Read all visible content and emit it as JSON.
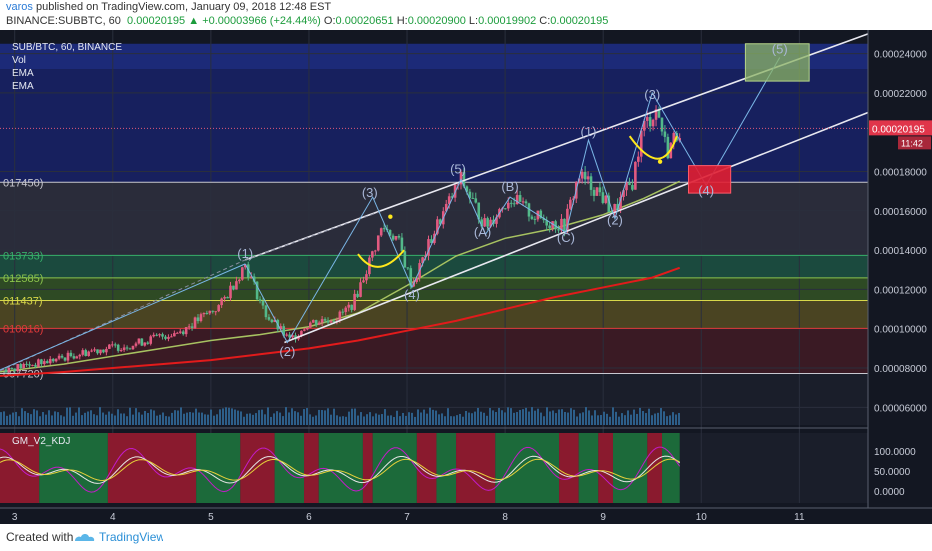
{
  "header": {
    "author": "varos",
    "published": " published on TradingView.com, January 09, 2018 12:48 EST",
    "symbol": "BINANCE:SUBBTC, 60",
    "last": "0.00020195",
    "change_arrow": "▲",
    "change": "+0.00003966 (+24.44%)",
    "o_label": "O:",
    "o": "0.00020651",
    "h_label": "H:",
    "h": "0.00020900",
    "l_label": "L:",
    "l": "0.00019902",
    "c_label": "C:",
    "c": "0.00020195"
  },
  "overlay": {
    "title": "SUB/BTC, 60, BINANCE",
    "vol": "Vol",
    "ema1": "EMA",
    "ema2": "EMA",
    "kdj": "GM_V2_KDJ"
  },
  "footer": {
    "created": "Created with",
    "brand": "TradingView"
  },
  "colors": {
    "bg": "#131722",
    "up": "#e25a80",
    "down": "#53b98a",
    "ema_slow": "#e21b1b",
    "ema_fast": "#a7c261",
    "channel": "#e8e8f0",
    "wave": "#7ab6e6",
    "yellow": "#ffe81c",
    "price_tag": "#e0354a"
  },
  "chart_data": [
    {
      "type": "candlestick",
      "title": "SUB/BTC, 60, BINANCE",
      "x_ticks": [
        "3",
        "4",
        "5",
        "6",
        "7",
        "8",
        "9",
        "10",
        "11"
      ],
      "x_range": [
        2.85,
        11.7
      ],
      "y_ticks": [
        "0.00024000",
        "0.00022000",
        "0.00018000",
        "0.00016000",
        "0.00014000",
        "0.00012000",
        "0.00010000",
        "0.00008000",
        "0.00006000"
      ],
      "y_range": [
        5.1e-05,
        0.000252
      ],
      "last_price": "0.00020195",
      "countdown": "11:42",
      "price_path": [
        [
          2.85,
          7.9e-05
        ],
        [
          3.3,
          8.3e-05
        ],
        [
          3.8,
          8.9e-05
        ],
        [
          4.2,
          9.2e-05
        ],
        [
          4.7,
          9.9e-05
        ],
        [
          5.1,
          0.000112
        ],
        [
          5.35,
          0.000133
        ],
        [
          5.55,
          0.000108
        ],
        [
          5.8,
          9.4e-05
        ],
        [
          6.0,
          0.000103
        ],
        [
          6.3,
          0.000106
        ],
        [
          6.45,
          0.000113
        ],
        [
          6.6,
          0.000132
        ],
        [
          6.75,
          0.000152
        ],
        [
          6.9,
          0.000146
        ],
        [
          7.05,
          0.000122
        ],
        [
          7.3,
          0.000152
        ],
        [
          7.55,
          0.000176
        ],
        [
          7.8,
          0.000152
        ],
        [
          8.05,
          0.000167
        ],
        [
          8.3,
          0.000157
        ],
        [
          8.6,
          0.000152
        ],
        [
          8.75,
          0.000178
        ],
        [
          8.95,
          0.00017
        ],
        [
          9.1,
          0.000159
        ],
        [
          9.3,
          0.000175
        ],
        [
          9.4,
          0.000202
        ],
        [
          9.55,
          0.000212
        ],
        [
          9.65,
          0.00019
        ],
        [
          9.78,
          0.000202
        ]
      ],
      "ema_fast": [
        [
          2.85,
          7.8e-05
        ],
        [
          3.5,
          8.2e-05
        ],
        [
          4.5,
          9e-05
        ],
        [
          5.0,
          9.4e-05
        ],
        [
          5.5,
          9.7e-05
        ],
        [
          6.0,
          0.000101
        ],
        [
          6.5,
          0.000108
        ],
        [
          7.0,
          0.000122
        ],
        [
          7.5,
          0.000137
        ],
        [
          8.0,
          0.000146
        ],
        [
          8.5,
          0.000151
        ],
        [
          9.0,
          0.000158
        ],
        [
          9.4,
          0.000166
        ],
        [
          9.78,
          0.000175
        ]
      ],
      "ema_slow": [
        [
          2.85,
          7.6e-05
        ],
        [
          3.5,
          7.8e-05
        ],
        [
          4.5,
          8.2e-05
        ],
        [
          5.0,
          8.4e-05
        ],
        [
          5.5,
          8.7e-05
        ],
        [
          6.0,
          9e-05
        ],
        [
          6.5,
          9.4e-05
        ],
        [
          7.0,
          9.9e-05
        ],
        [
          7.5,
          0.000104
        ],
        [
          8.0,
          0.00011
        ],
        [
          8.5,
          0.000116
        ],
        [
          9.0,
          0.000121
        ],
        [
          9.5,
          0.000126
        ],
        [
          9.78,
          0.000131
        ]
      ],
      "channel_upper": [
        [
          5.35,
          0.000135
        ],
        [
          11.7,
          0.00025
        ]
      ],
      "channel_lower": [
        [
          5.75,
          9.3e-05
        ],
        [
          11.7,
          0.00021
        ]
      ],
      "fib_levels": [
        {
          "label": "017450)",
          "value": 0.0001745
        },
        {
          "label": "013733)",
          "value": 0.00013733
        },
        {
          "label": "012585)",
          "value": 0.00012585
        },
        {
          "label": "011437)",
          "value": 0.00011437
        },
        {
          "label": "010016)",
          "value": 0.00010016
        },
        {
          "label": "007720)",
          "value": 7.72e-05
        }
      ],
      "wave_labels": [
        {
          "text": "(1)",
          "x": 5.35,
          "y": 0.000136
        },
        {
          "text": "(2)",
          "x": 5.78,
          "y": 8.6e-05
        },
        {
          "text": "(3)",
          "x": 6.62,
          "y": 0.000167
        },
        {
          "text": "(4)",
          "x": 7.05,
          "y": 0.000115
        },
        {
          "text": "(5)",
          "x": 7.52,
          "y": 0.000179
        },
        {
          "text": "(A)",
          "x": 7.77,
          "y": 0.000147
        },
        {
          "text": "(B)",
          "x": 8.05,
          "y": 0.00017
        },
        {
          "text": "(C)",
          "x": 8.62,
          "y": 0.000144
        },
        {
          "text": "(1)",
          "x": 8.85,
          "y": 0.000198
        },
        {
          "text": "(2)",
          "x": 9.12,
          "y": 0.000153
        },
        {
          "text": "(3)",
          "x": 9.5,
          "y": 0.000217
        },
        {
          "text": "(4)",
          "x": 10.05,
          "y": 0.000168
        },
        {
          "text": "(5)",
          "x": 10.8,
          "y": 0.00024
        }
      ],
      "wave_path": [
        [
          5.35,
          0.000133
        ],
        [
          5.78,
          9.3e-05
        ],
        [
          6.65,
          0.000167
        ],
        [
          7.05,
          0.000121
        ],
        [
          7.55,
          0.000176
        ],
        [
          7.8,
          0.000148
        ],
        [
          8.05,
          0.000167
        ],
        [
          8.62,
          0.000149
        ],
        [
          8.85,
          0.000196
        ],
        [
          9.12,
          0.000156
        ],
        [
          9.5,
          0.00022
        ],
        [
          10.05,
          0.000173
        ],
        [
          10.8,
          0.000238
        ]
      ],
      "boxes": [
        {
          "color": "green",
          "x": [
            10.45,
            11.1
          ],
          "y": [
            0.000226,
            0.000245
          ]
        },
        {
          "color": "red",
          "x": [
            9.87,
            10.3
          ],
          "y": [
            0.000169,
            0.000183
          ]
        }
      ]
    },
    {
      "type": "bar",
      "title": "Vol",
      "note": "volume histogram along the bottom of the main pane"
    },
    {
      "type": "line",
      "title": "GM_V2_KDJ",
      "y_ticks": [
        "100.0000",
        "50.0000",
        "0.0000"
      ],
      "y_range": [
        -30,
        145
      ],
      "background_segments": [
        {
          "x": [
            2.85,
            3.25
          ],
          "color": "red"
        },
        {
          "x": [
            3.25,
            3.95
          ],
          "color": "green"
        },
        {
          "x": [
            3.95,
            4.85
          ],
          "color": "red"
        },
        {
          "x": [
            4.85,
            5.3
          ],
          "color": "green"
        },
        {
          "x": [
            5.3,
            5.65
          ],
          "color": "red"
        },
        {
          "x": [
            5.65,
            5.95
          ],
          "color": "green"
        },
        {
          "x": [
            5.95,
            6.1
          ],
          "color": "red"
        },
        {
          "x": [
            6.1,
            6.55
          ],
          "color": "green"
        },
        {
          "x": [
            6.55,
            6.65
          ],
          "color": "red"
        },
        {
          "x": [
            6.65,
            7.1
          ],
          "color": "green"
        },
        {
          "x": [
            7.1,
            7.3
          ],
          "color": "red"
        },
        {
          "x": [
            7.3,
            7.5
          ],
          "color": "green"
        },
        {
          "x": [
            7.5,
            7.9
          ],
          "color": "red"
        },
        {
          "x": [
            7.9,
            8.55
          ],
          "color": "green"
        },
        {
          "x": [
            8.55,
            8.75
          ],
          "color": "red"
        },
        {
          "x": [
            8.75,
            8.95
          ],
          "color": "green"
        },
        {
          "x": [
            8.95,
            9.1
          ],
          "color": "red"
        },
        {
          "x": [
            9.1,
            9.45
          ],
          "color": "green"
        },
        {
          "x": [
            9.45,
            9.6
          ],
          "color": "red"
        },
        {
          "x": [
            9.6,
            9.78
          ],
          "color": "green"
        }
      ]
    }
  ]
}
